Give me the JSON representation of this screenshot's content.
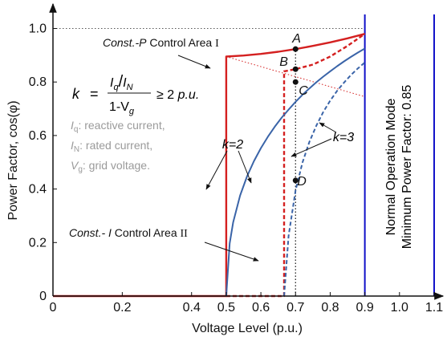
{
  "chart_data": {
    "type": "line",
    "xlabel": "Voltage Level (p.u.)",
    "ylabel": "Power Factor, cos(φ)",
    "xlim": [
      0,
      1.12
    ],
    "ylim": [
      0,
      1.05
    ],
    "x_ticks": [
      "0",
      "0.2",
      "0.4",
      "0.5",
      "0.6",
      "0.7",
      "0.8",
      "0.9",
      "1.0",
      "1.1"
    ],
    "x_tick_values": [
      0,
      0.2,
      0.4,
      0.5,
      0.6,
      0.7,
      0.8,
      0.9,
      1.0,
      1.1
    ],
    "y_ticks": [
      "0",
      "0.2",
      "0.4",
      "0.6",
      "0.8",
      "1.0"
    ],
    "y_tick_values": [
      0,
      0.2,
      0.4,
      0.6,
      0.8,
      1.0
    ],
    "grid": false,
    "series": [
      {
        "name": "k=2",
        "style": "solid",
        "color": "#d42020",
        "x": [
          0,
          0.5,
          0.5,
          0.55,
          0.6,
          0.65,
          0.7,
          0.75,
          0.8,
          0.85,
          0.9
        ],
        "y": [
          0,
          0,
          0.895,
          0.899,
          0.905,
          0.913,
          0.923,
          0.935,
          0.948,
          0.963,
          0.98
        ]
      },
      {
        "name": "k=3",
        "style": "dashed",
        "color": "#d42020",
        "x": [
          0.5,
          0.667,
          0.667,
          0.7,
          0.75,
          0.8,
          0.85,
          0.9
        ],
        "y": [
          0,
          0,
          0.84,
          0.848,
          0.865,
          0.895,
          0.935,
          0.98
        ]
      },
      {
        "style": "solid",
        "color": "#3a64a8",
        "x": [
          0.5,
          0.51,
          0.52,
          0.54,
          0.56,
          0.58,
          0.6,
          0.62,
          0.64,
          0.66,
          0.68,
          0.7,
          0.72,
          0.74,
          0.76,
          0.78,
          0.8,
          0.82,
          0.84,
          0.86,
          0.88,
          0.9
        ],
        "y": [
          0,
          0.197,
          0.275,
          0.376,
          0.447,
          0.504,
          0.553,
          0.595,
          0.633,
          0.667,
          0.697,
          0.726,
          0.752,
          0.776,
          0.799,
          0.82,
          0.84,
          0.859,
          0.877,
          0.894,
          0.91,
          0.925
        ]
      },
      {
        "style": "dashed",
        "color": "#3a64a8",
        "x": [
          0.667,
          0.68,
          0.7,
          0.72,
          0.74,
          0.76,
          0.78,
          0.8,
          0.82,
          0.84,
          0.86,
          0.88,
          0.9
        ],
        "y": [
          0,
          0.225,
          0.395,
          0.499,
          0.576,
          0.637,
          0.688,
          0.73,
          0.767,
          0.798,
          0.826,
          0.851,
          0.873
        ]
      }
    ],
    "vertical_lines": [
      {
        "x": 0.9,
        "color": "#1010c8",
        "style": "solid"
      },
      {
        "x": 1.1,
        "color": "#1010c8",
        "style": "solid"
      },
      {
        "x": 0.7,
        "color": "#111111",
        "style": "dotted",
        "y_from": 0,
        "y_to": 0.923
      }
    ],
    "reference_lines": [
      {
        "y": 1.0,
        "color": "#555555",
        "style": "dotted"
      },
      {
        "x": [
          0.5,
          0.9
        ],
        "y": [
          0.895,
          0.745
        ],
        "color": "#d42020",
        "style": "dotted"
      }
    ],
    "points": [
      {
        "label": "A",
        "x": 0.7,
        "y": 0.923
      },
      {
        "label": "B",
        "x": 0.7,
        "y": 0.848
      },
      {
        "label": "C",
        "x": 0.7,
        "y": 0.8
      },
      {
        "label": "D",
        "x": 0.7,
        "y": 0.432
      }
    ],
    "annotations": {
      "area1_prefix": "Const.-P",
      "area1_text": "Control Area",
      "area1_roman": "I",
      "area2_prefix": "Const.- I",
      "area2_text": "Control Area",
      "area2_roman": "II",
      "k_symbol": "k",
      "equals": "=",
      "frac_num_a": "I",
      "frac_num_a_sub": "q",
      "frac_slash": "/",
      "frac_num_b": "I",
      "frac_num_b_sub": "N",
      "frac_den_a": "1-V",
      "frac_den_a_sub": "g",
      "ineq": "≥ 2",
      "unit": "p.u.",
      "legend_iq_sym": "I",
      "legend_iq_sub": "q",
      "legend_iq_text": ": reactive current,",
      "legend_in_sym": "I",
      "legend_in_sub": "N",
      "legend_in_text": ": rated current,",
      "legend_vg_sym": "V",
      "legend_vg_sub": "g",
      "legend_vg_text": ": grid voltage.",
      "k2_label": "k=2",
      "k3_label": "k=3",
      "normal_mode_line1": "Normal Operation Mode",
      "normal_mode_line2": "Minimum Power Factor: 0.85"
    }
  }
}
